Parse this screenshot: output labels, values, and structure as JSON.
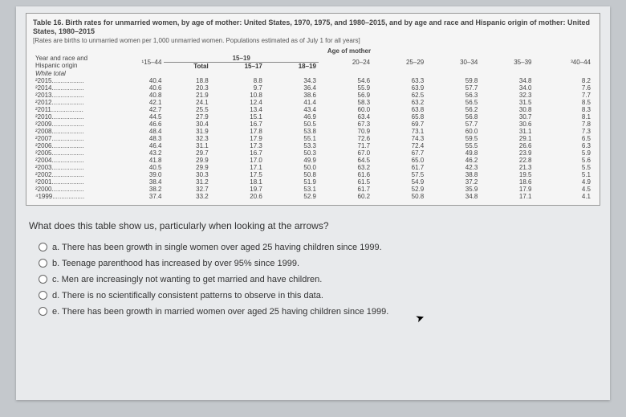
{
  "table": {
    "title": "Table 16. Birth rates for unmarried women, by age of mother: United States, 1970, 1975, and 1980–2015, and by age and race and Hispanic origin of mother: United States, 1980–2015",
    "subtitle": "[Rates are births to unmarried women per 1,000 unmarried women. Populations estimated as of July 1 for all years]",
    "super_header": "Age of mother",
    "row_label_header": "Year and race and Hispanic origin",
    "sub_15_19": "15–19",
    "columns": [
      "¹15–44",
      "Total",
      "15–17",
      "18–19",
      "20–24",
      "25–29",
      "30–34",
      "35–39",
      "³40–44"
    ],
    "group": "White total",
    "rows": [
      {
        "y": "²2015",
        "v": [
          "40.4",
          "18.8",
          "8.8",
          "34.3",
          "54.6",
          "63.3",
          "59.8",
          "34.8",
          "8.2"
        ]
      },
      {
        "y": "²2014",
        "v": [
          "40.6",
          "20.3",
          "9.7",
          "36.4",
          "55.9",
          "63.9",
          "57.7",
          "34.0",
          "7.6"
        ]
      },
      {
        "y": "²2013",
        "v": [
          "40.8",
          "21.9",
          "10.8",
          "38.6",
          "56.9",
          "62.5",
          "56.3",
          "32.3",
          "7.7"
        ]
      },
      {
        "y": "²2012",
        "v": [
          "42.1",
          "24.1",
          "12.4",
          "41.4",
          "58.3",
          "63.2",
          "56.5",
          "31.5",
          "8.5"
        ]
      },
      {
        "y": "²2011",
        "v": [
          "42.7",
          "25.5",
          "13.4",
          "43.4",
          "60.0",
          "63.8",
          "56.2",
          "30.8",
          "8.3"
        ]
      },
      {
        "y": "²2010",
        "v": [
          "44.5",
          "27.9",
          "15.1",
          "46.9",
          "63.4",
          "65.8",
          "56.8",
          "30.7",
          "8.1"
        ]
      },
      {
        "y": "²2009",
        "v": [
          "46.6",
          "30.4",
          "16.7",
          "50.5",
          "67.3",
          "69.7",
          "57.7",
          "30.6",
          "7.8"
        ]
      },
      {
        "y": "²2008",
        "v": [
          "48.4",
          "31.9",
          "17.8",
          "53.8",
          "70.9",
          "73.1",
          "60.0",
          "31.1",
          "7.3"
        ]
      },
      {
        "y": "²2007",
        "v": [
          "48.3",
          "32.3",
          "17.9",
          "55.1",
          "72.6",
          "74.3",
          "59.5",
          "29.1",
          "6.5"
        ]
      },
      {
        "y": "²2006",
        "v": [
          "46.4",
          "31.1",
          "17.3",
          "53.3",
          "71.7",
          "72.4",
          "55.5",
          "26.6",
          "6.3"
        ]
      },
      {
        "y": "²2005",
        "v": [
          "43.2",
          "29.7",
          "16.7",
          "50.3",
          "67.0",
          "67.7",
          "49.8",
          "23.9",
          "5.9"
        ]
      },
      {
        "y": "²2004",
        "v": [
          "41.8",
          "29.9",
          "17.0",
          "49.9",
          "64.5",
          "65.0",
          "46.2",
          "22.8",
          "5.6"
        ]
      },
      {
        "y": "²2003",
        "v": [
          "40.5",
          "29.9",
          "17.1",
          "50.0",
          "63.2",
          "61.7",
          "42.3",
          "21.3",
          "5.5"
        ]
      },
      {
        "y": "²2002",
        "v": [
          "39.0",
          "30.3",
          "17.5",
          "50.8",
          "61.6",
          "57.5",
          "38.8",
          "19.5",
          "5.1"
        ]
      },
      {
        "y": "²2001",
        "v": [
          "38.4",
          "31.2",
          "18.1",
          "51.9",
          "61.5",
          "54.9",
          "37.2",
          "18.6",
          "4.9"
        ]
      },
      {
        "y": "²2000",
        "v": [
          "38.2",
          "32.7",
          "19.7",
          "53.1",
          "61.7",
          "52.9",
          "35.9",
          "17.9",
          "4.5"
        ]
      },
      {
        "y": "⁴1999",
        "v": [
          "37.4",
          "33.2",
          "20.6",
          "52.9",
          "60.2",
          "50.8",
          "34.8",
          "17.1",
          "4.1"
        ]
      }
    ],
    "colors": {
      "page_bg": "#c4c8cc",
      "panel_bg": "#e8eaec",
      "table_bg": "#f5f5f5",
      "border": "#999999",
      "text": "#333333"
    },
    "font_sizes": {
      "title": 9,
      "cells": 8,
      "question": 12,
      "options": 11
    }
  },
  "question": "What does this table show us, particularly when looking at the arrows?",
  "options": {
    "a": "a. There has been growth in single women over aged 25 having children since 1999.",
    "b": "b. Teenage parenthood has increased by over 95% since 1999.",
    "c": "c. Men are increasingly not wanting to get married and have children.",
    "d": "d. There is no scientifically consistent patterns to observe in this data.",
    "e": "e. There has been growth in married women over aged 25 having children since 1999."
  }
}
